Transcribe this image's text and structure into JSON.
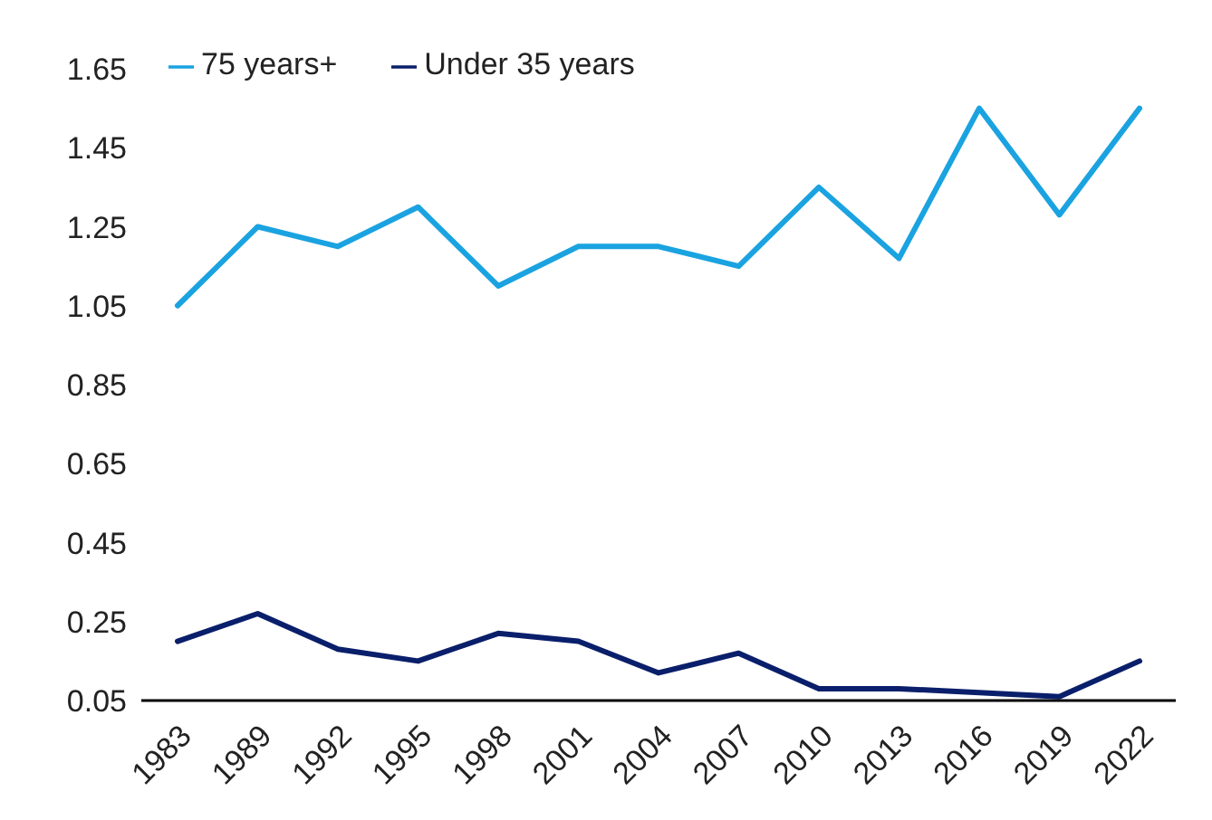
{
  "chart_data": {
    "type": "line",
    "categories": [
      "1983",
      "1989",
      "1992",
      "1995",
      "1998",
      "2001",
      "2004",
      "2007",
      "2010",
      "2013",
      "2016",
      "2019",
      "2022"
    ],
    "series": [
      {
        "name": "Under 35 years",
        "color": "#0a1f6b",
        "values": [
          0.2,
          0.27,
          0.18,
          0.15,
          0.22,
          0.2,
          0.12,
          0.17,
          0.08,
          0.08,
          0.07,
          0.06,
          0.15
        ]
      },
      {
        "name": "75 years+",
        "color": "#1aa3e0",
        "values": [
          1.05,
          1.25,
          1.2,
          1.3,
          1.1,
          1.2,
          1.2,
          1.15,
          1.35,
          1.17,
          1.55,
          1.28,
          1.55
        ]
      }
    ],
    "ylim": [
      0.05,
      1.65
    ],
    "yticks": [
      0.05,
      0.25,
      0.45,
      0.65,
      0.85,
      1.05,
      1.25,
      1.45,
      1.65
    ],
    "grid": false,
    "legend": "top left",
    "marker": "none",
    "line_style": "solid"
  }
}
